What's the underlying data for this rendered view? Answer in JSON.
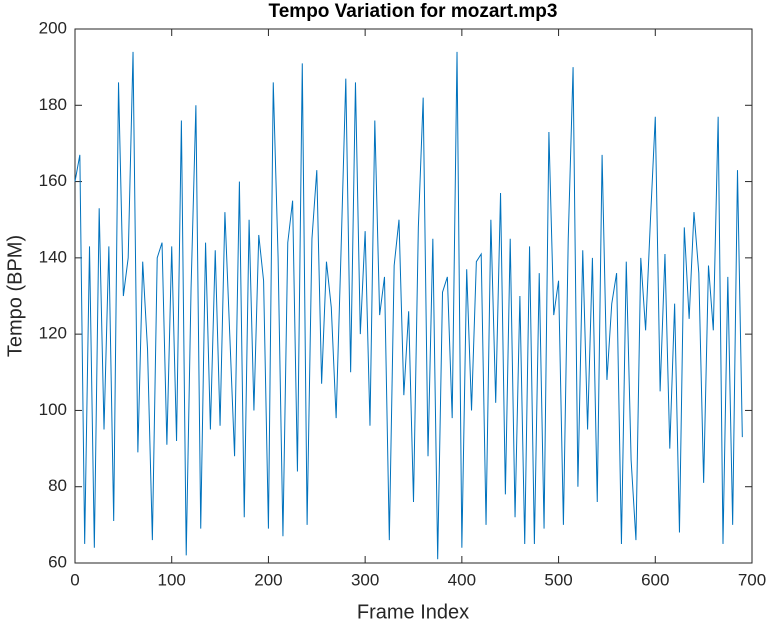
{
  "chart_data": {
    "type": "line",
    "title": "Tempo Variation for mozart.mp3",
    "x_label": "Frame Index",
    "y_label": "Tempo (BPM)",
    "x": [
      0,
      5,
      10,
      15,
      20,
      25,
      30,
      35,
      40,
      45,
      50,
      55,
      60,
      65,
      70,
      75,
      80,
      85,
      90,
      95,
      100,
      105,
      110,
      115,
      120,
      125,
      130,
      135,
      140,
      145,
      150,
      155,
      160,
      165,
      170,
      175,
      180,
      185,
      190,
      195,
      200,
      205,
      210,
      215,
      220,
      225,
      230,
      235,
      240,
      245,
      250,
      255,
      260,
      265,
      270,
      275,
      280,
      285,
      290,
      295,
      300,
      305,
      310,
      315,
      320,
      325,
      330,
      335,
      340,
      345,
      350,
      355,
      360,
      365,
      370,
      375,
      380,
      385,
      390,
      395,
      400,
      405,
      410,
      415,
      420,
      425,
      430,
      435,
      440,
      445,
      450,
      455,
      460,
      465,
      470,
      475,
      480,
      485,
      490,
      495,
      500,
      505,
      510,
      515,
      520,
      525,
      530,
      535,
      540,
      545,
      550,
      555,
      560,
      565,
      570,
      575,
      580,
      585,
      590,
      595,
      600,
      605,
      610,
      615,
      620,
      625,
      630,
      635,
      640,
      645,
      650,
      655,
      660,
      665,
      670,
      675,
      680,
      685,
      690
    ],
    "series": [
      {
        "name": "Tempo",
        "color": "#0072bd",
        "values": [
          160,
          167,
          65,
          143,
          64,
          153,
          95,
          143,
          71,
          186,
          130,
          140,
          194,
          89,
          139,
          116,
          66,
          140,
          144,
          91,
          143,
          92,
          176,
          62,
          132,
          180,
          69,
          144,
          95,
          142,
          96,
          152,
          120,
          88,
          160,
          72,
          150,
          100,
          146,
          134,
          69,
          186,
          140,
          67,
          144,
          155,
          84,
          191,
          70,
          145,
          163,
          107,
          139,
          127,
          98,
          141,
          187,
          110,
          186,
          120,
          147,
          96,
          176,
          125,
          135,
          66,
          138,
          150,
          104,
          126,
          76,
          148,
          182,
          88,
          145,
          61,
          131,
          135,
          98,
          194,
          64,
          137,
          100,
          139,
          141,
          70,
          150,
          102,
          157,
          78,
          145,
          72,
          130,
          65,
          143,
          65,
          136,
          69,
          173,
          125,
          134,
          70,
          145,
          190,
          80,
          142,
          95,
          140,
          76,
          167,
          108,
          128,
          136,
          65,
          139,
          87,
          66,
          140,
          121,
          150,
          177,
          105,
          141,
          90,
          128,
          68,
          148,
          124,
          152,
          136,
          81,
          138,
          121,
          177,
          65,
          135,
          70,
          163,
          93
        ]
      }
    ],
    "xlim": [
      0,
      700
    ],
    "xticks": [
      0,
      100,
      200,
      300,
      400,
      500,
      600,
      700
    ],
    "ylim": [
      60,
      200
    ],
    "yticks": [
      60,
      80,
      100,
      120,
      140,
      160,
      180,
      200
    ]
  }
}
